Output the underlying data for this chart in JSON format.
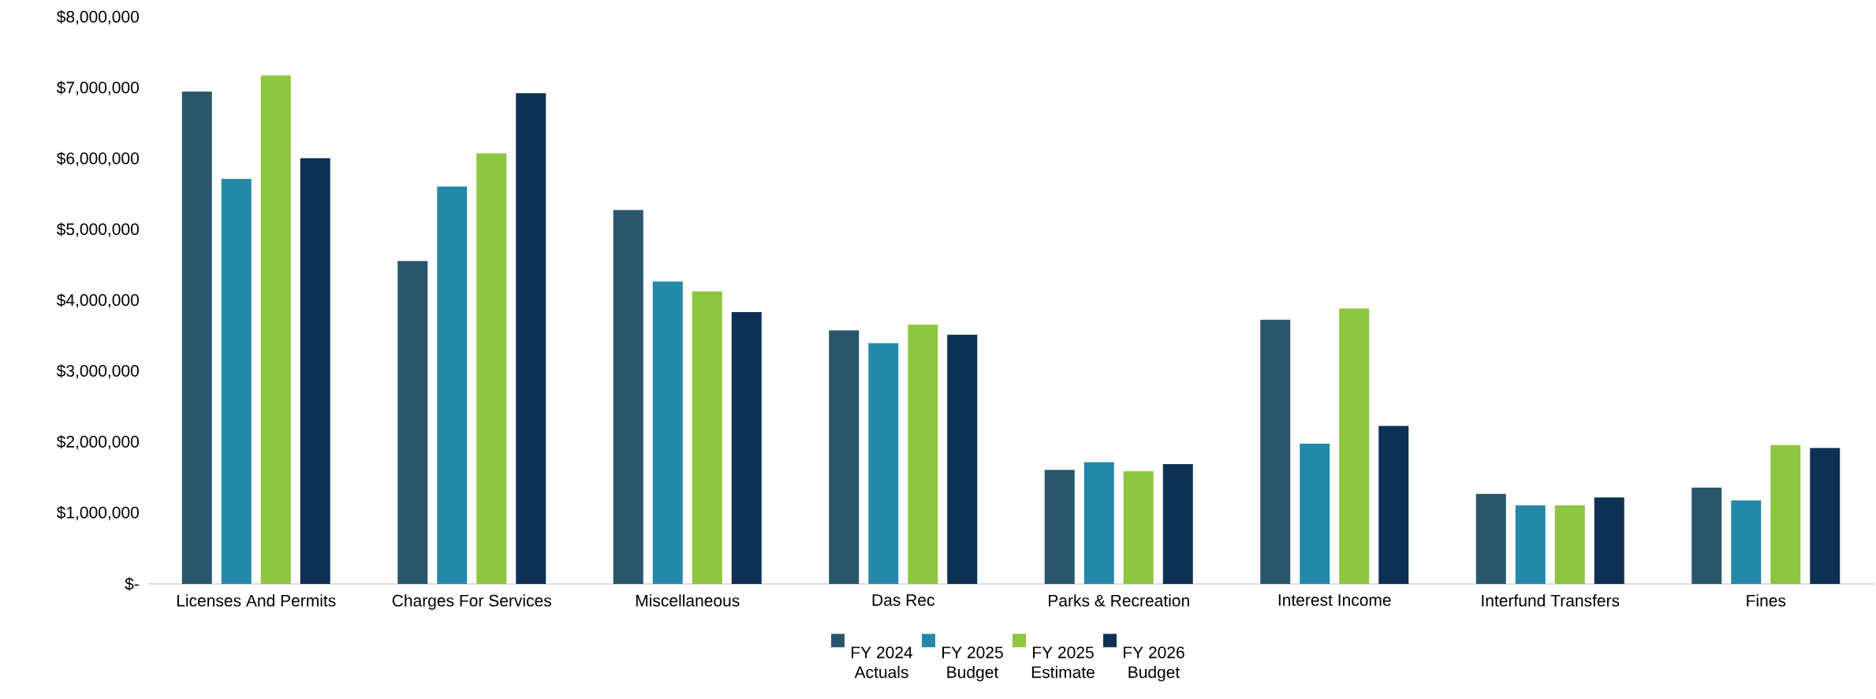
{
  "chart_data": {
    "type": "bar",
    "categories": [
      "Licenses And Permits",
      "Charges For Services",
      "Miscellaneous",
      "Das Rec",
      "Parks & Recreation",
      "Interest Income",
      "Interfund Transfers",
      "Fines"
    ],
    "series": [
      {
        "name": "FY 2024 Actuals",
        "color": "#2a556b",
        "values": [
          6950000,
          4560000,
          5280000,
          3580000,
          1610000,
          3730000,
          1270000,
          1360000
        ]
      },
      {
        "name": "FY 2025 Budget",
        "color": "#2489a7",
        "values": [
          5720000,
          5610000,
          4270000,
          3400000,
          1720000,
          1980000,
          1110000,
          1180000
        ]
      },
      {
        "name": "FY 2025 Estimate",
        "color": "#8dc63f",
        "values": [
          7180000,
          6080000,
          4130000,
          3660000,
          1590000,
          3890000,
          1110000,
          1960000
        ]
      },
      {
        "name": "FY 2026 Budget",
        "color": "#0d3153",
        "values": [
          6010000,
          6930000,
          3840000,
          3520000,
          1690000,
          2230000,
          1220000,
          1920000
        ]
      }
    ],
    "ylim": [
      0,
      8000000
    ],
    "yticks": [
      {
        "value": 0,
        "label": "$-"
      },
      {
        "value": 1000000,
        "label": "$1,000,000"
      },
      {
        "value": 2000000,
        "label": "$2,000,000"
      },
      {
        "value": 3000000,
        "label": "$3,000,000"
      },
      {
        "value": 4000000,
        "label": "$4,000,000"
      },
      {
        "value": 5000000,
        "label": "$5,000,000"
      },
      {
        "value": 6000000,
        "label": "$6,000,000"
      },
      {
        "value": 7000000,
        "label": "$7,000,000"
      },
      {
        "value": 8000000,
        "label": "$8,000,000"
      }
    ],
    "legend": "bottom"
  }
}
